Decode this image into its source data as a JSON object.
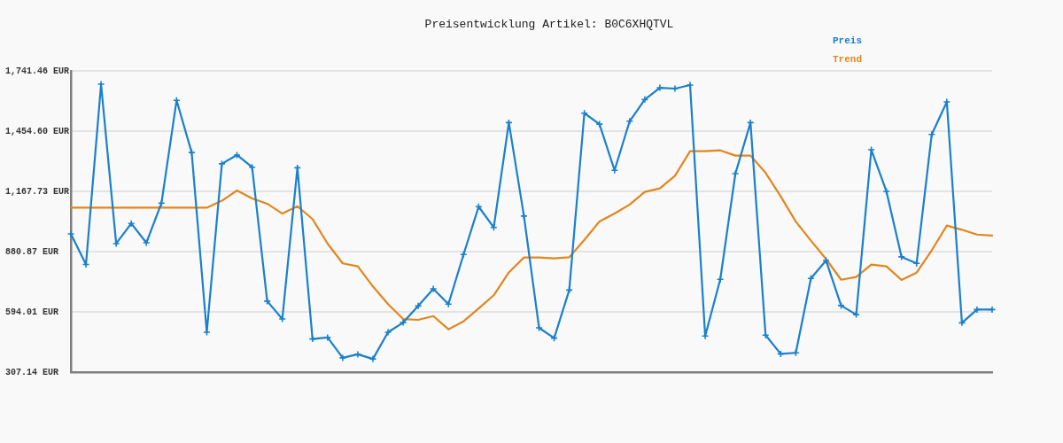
{
  "chart_data": {
    "type": "line",
    "title": "Preisentwicklung Artikel: B0C6XHQTVL",
    "categories": [
      null,
      null,
      null,
      null,
      null,
      null,
      null,
      null,
      null,
      null,
      null,
      null,
      null,
      null,
      null,
      null,
      null,
      null,
      null,
      null,
      null,
      null,
      null,
      null,
      null,
      null,
      null,
      null,
      null,
      null,
      null,
      null,
      null,
      null,
      null,
      null,
      null,
      null,
      null,
      null,
      null,
      null,
      null,
      null,
      null,
      null,
      null,
      null,
      null,
      null,
      null,
      null,
      null,
      null,
      null,
      null,
      null,
      null,
      null,
      null,
      null,
      null
    ],
    "series": [
      {
        "name": "Preis",
        "color": "#1a80cc",
        "marker": "cross",
        "values": [
          965,
          820,
          1678,
          919,
          1015,
          923,
          1112,
          1601,
          1353,
          497,
          1299,
          1341,
          1283,
          645,
          560,
          1280,
          465,
          472,
          375,
          392,
          370,
          497,
          543,
          622,
          704,
          631,
          867,
          1095,
          996,
          1495,
          1050,
          518,
          469,
          698,
          1540,
          1488,
          1268,
          1502,
          1605,
          1661,
          1657,
          1674,
          479,
          749,
          1252,
          1495,
          483,
          394,
          399,
          753,
          839,
          624,
          581,
          1366,
          1168,
          856,
          825,
          1439,
          1594,
          542,
          605,
          605
        ]
      },
      {
        "name": "Trend",
        "color": "#e2861d",
        "marker": "none",
        "values": [
          1090,
          1090,
          1090,
          1090,
          1090,
          1090,
          1090,
          1090,
          1090,
          1090,
          1123,
          1172,
          1134,
          1109,
          1062,
          1097,
          1036,
          919,
          825,
          811,
          715,
          631,
          560,
          556,
          574,
          511,
          549,
          610,
          673,
          782,
          853,
          853,
          849,
          854,
          937,
          1024,
          1062,
          1105,
          1165,
          1182,
          1242,
          1359,
          1359,
          1363,
          1338,
          1338,
          1256,
          1144,
          1024,
          933,
          846,
          747,
          760,
          819,
          811,
          746,
          781,
          887,
          1005,
          985,
          962,
          957
        ]
      }
    ],
    "ylim": [
      307.14,
      1741.46
    ],
    "yticks": [
      {
        "value": 307.14,
        "label": "307.14 EUR"
      },
      {
        "value": 594.01,
        "label": "594.01 EUR"
      },
      {
        "value": 880.87,
        "label": "880.87 EUR"
      },
      {
        "value": 1167.73,
        "label": "1,167.73 EUR"
      },
      {
        "value": 1454.6,
        "label": "1,454.60 EUR"
      },
      {
        "value": 1741.46,
        "label": "1,741.46 EUR"
      }
    ],
    "grid": "y",
    "legend": "top right",
    "tick_labels": "y"
  }
}
